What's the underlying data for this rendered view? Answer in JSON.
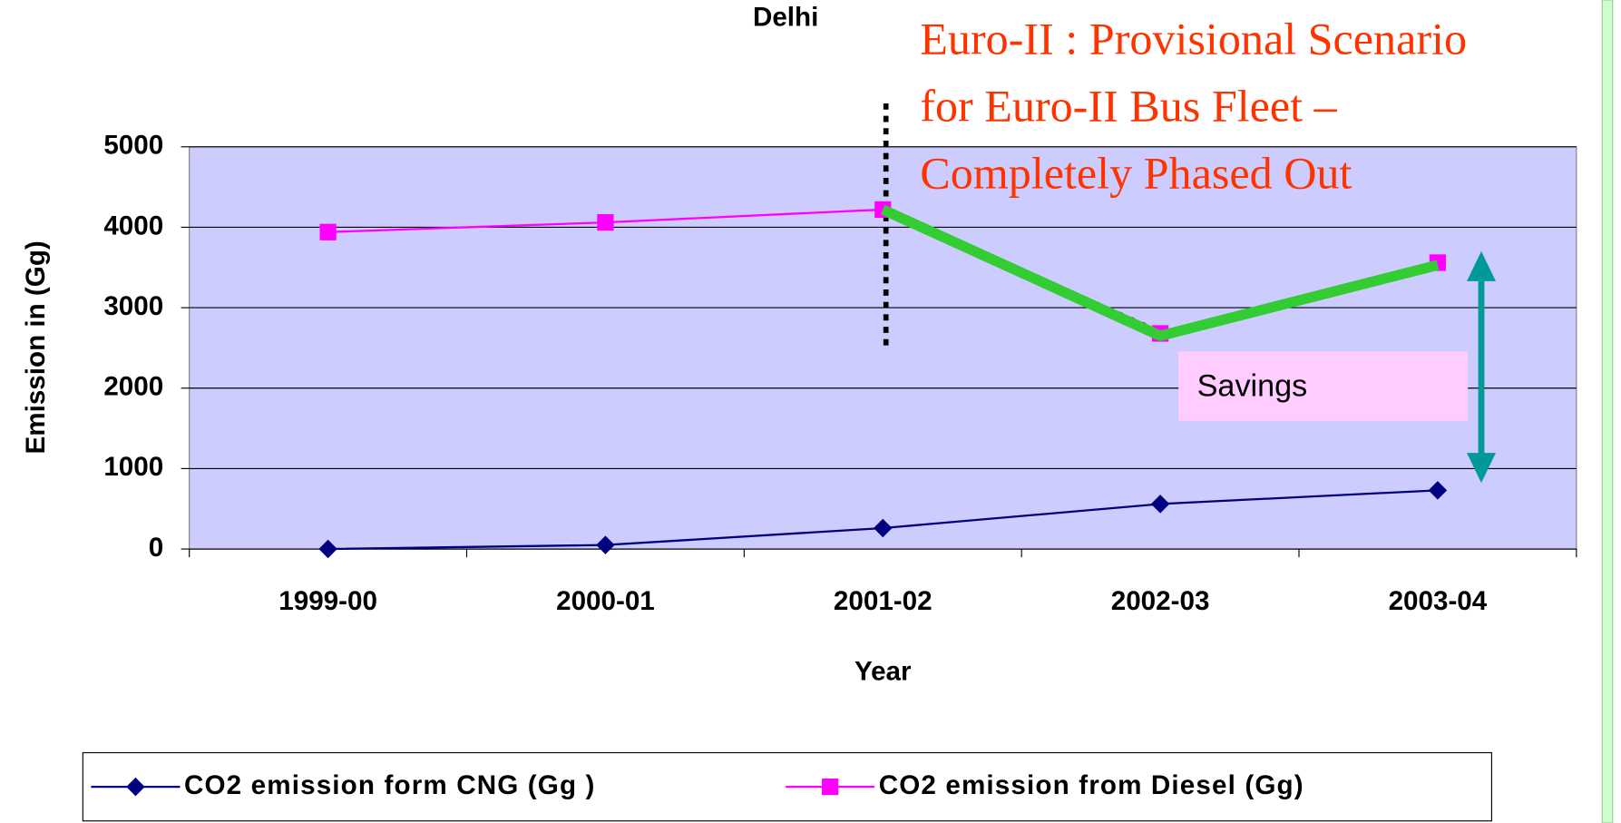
{
  "chart_data": {
    "type": "line",
    "title": "Delhi",
    "x_label": "Year",
    "y_label": "Emission in (Gg)",
    "categories": [
      "1999-00",
      "2000-01",
      "2001-02",
      "2002-03",
      "2003-04"
    ],
    "series": [
      {
        "name": "CO2 emission form CNG (Gg )",
        "color": "#000080",
        "marker": "diamond",
        "values": [
          0,
          50,
          260,
          560,
          730
        ]
      },
      {
        "name": "CO2 emission from Diesel (Gg)",
        "color": "#ff00ff",
        "marker": "square",
        "values": [
          3940,
          4060,
          4220,
          2680,
          3560
        ]
      }
    ],
    "scenario": {
      "color": "#33cc33",
      "values": [
        null,
        null,
        4220,
        2650,
        3530
      ]
    },
    "annotations": [
      "Euro-II : Provisional Scenario",
      "for Euro-II Bus Fleet –",
      "Completely Phased Out",
      "Savings"
    ],
    "ylim": [
      0,
      5000
    ],
    "yticks": [
      0,
      1000,
      2000,
      3000,
      4000,
      5000
    ],
    "grid": true
  }
}
